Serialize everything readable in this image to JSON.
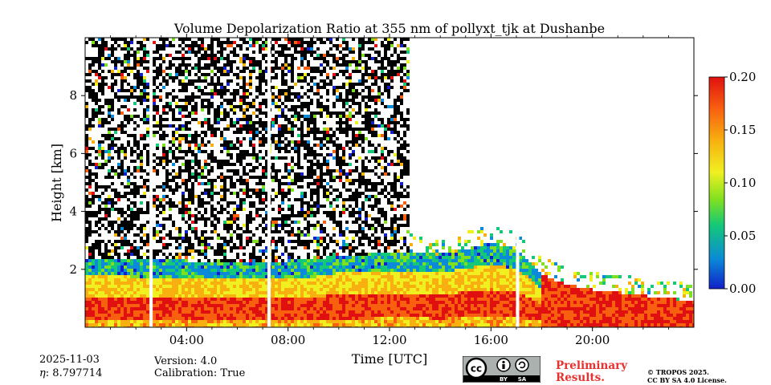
{
  "chart_data": {
    "type": "heatmap",
    "title": "Volume Depolarization Ratio at 355 nm of pollyxt_tjk at Dushanbe",
    "xlabel": "Time [UTC]",
    "ylabel": "Height [km]",
    "xlim": [
      0,
      24
    ],
    "ylim": [
      0,
      10
    ],
    "x_ticks": [
      4,
      8,
      12,
      16,
      20
    ],
    "x_tick_labels": [
      "04:00",
      "08:00",
      "12:00",
      "16:00",
      "20:00"
    ],
    "x_minor_ticks": [
      1,
      2,
      3,
      5,
      6,
      7,
      9,
      10,
      11,
      13,
      14,
      15,
      17,
      18,
      19,
      21,
      22,
      23
    ],
    "y_ticks": [
      2,
      4,
      6,
      8
    ],
    "y_tick_labels": [
      "2",
      "4",
      "6",
      "8"
    ],
    "colorbar": {
      "min": 0.0,
      "max": 0.2,
      "ticks": [
        0.0,
        0.05,
        0.1,
        0.15,
        0.2
      ],
      "tick_labels": [
        "0.00",
        "0.05",
        "0.10",
        "0.15",
        "0.20"
      ],
      "colormap": [
        "#1020c8",
        "#0a8ad8",
        "#14c878",
        "#7ee020",
        "#f0f020",
        "#f8b010",
        "#f86010",
        "#e01010"
      ]
    },
    "data_gaps_hours": [
      2.6,
      7.25,
      17.05
    ],
    "boundary_layer_top_km": [
      2.4,
      2.4,
      2.3,
      2.3,
      2.3,
      2.2,
      2.2,
      2.2,
      2.3,
      2.3,
      2.5,
      2.5,
      2.6,
      2.6,
      2.5,
      2.7,
      2.9,
      2.7,
      1.8,
      1.5,
      1.3,
      1.2,
      1.1,
      1.0,
      0.9
    ],
    "noise_region_hours": [
      0.0,
      12.8
    ]
  },
  "info": {
    "date": "2025-11-03",
    "eta_label": "η",
    "eta_value": ": 8.797714",
    "version": "Version: 4.0",
    "calibration": "Calibration: True"
  },
  "license": {
    "cc_label": "cc",
    "by_label": "BY",
    "sa_label": "SA",
    "preliminary_line1": "Preliminary",
    "preliminary_line2": "Results.",
    "copyright_line1": "© TROPOS 2025.",
    "copyright_line2": "CC BY SA 4.0 License."
  }
}
